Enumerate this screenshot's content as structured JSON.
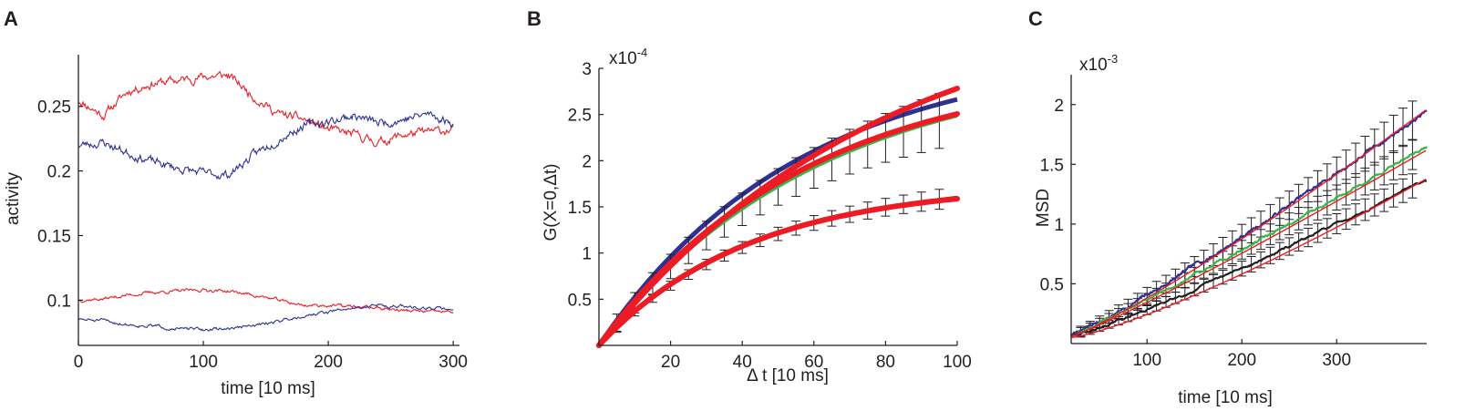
{
  "colors": {
    "red": "#ed1c24",
    "blue": "#2e3192",
    "green": "#39b54a",
    "black": "#231f20",
    "axis": "#231f20"
  },
  "chart_data": [
    {
      "panel": "A",
      "type": "line",
      "title": "",
      "xlabel": "time [10 ms]",
      "ylabel": "activity",
      "xlim": [
        0,
        305
      ],
      "ylim": [
        0.065,
        0.29
      ],
      "xticks": [
        0,
        100,
        200,
        300
      ],
      "xtick_labels": [
        "0",
        "100",
        "200",
        "300"
      ],
      "yticks": [
        0.1,
        0.15,
        0.2,
        0.25
      ],
      "ytick_labels": [
        "0.1",
        "0.15",
        "0.2",
        "0.25"
      ],
      "grid": false,
      "series": [
        {
          "name": "red upper",
          "color": "red",
          "noise": 0.0045,
          "seed": 11,
          "x": [
            0,
            20,
            40,
            60,
            80,
            100,
            120,
            140,
            160,
            180,
            200,
            220,
            240,
            260,
            280,
            300
          ],
          "y": [
            0.255,
            0.243,
            0.262,
            0.268,
            0.27,
            0.273,
            0.274,
            0.258,
            0.244,
            0.24,
            0.232,
            0.228,
            0.222,
            0.228,
            0.23,
            0.232
          ]
        },
        {
          "name": "blue upper",
          "color": "blue",
          "noise": 0.0045,
          "seed": 23,
          "x": [
            0,
            20,
            40,
            60,
            80,
            100,
            120,
            140,
            160,
            180,
            200,
            220,
            240,
            260,
            280,
            300
          ],
          "y": [
            0.22,
            0.222,
            0.214,
            0.207,
            0.202,
            0.198,
            0.197,
            0.212,
            0.225,
            0.235,
            0.238,
            0.243,
            0.237,
            0.24,
            0.244,
            0.237
          ]
        },
        {
          "name": "red lower",
          "color": "red",
          "noise": 0.0017,
          "seed": 37,
          "x": [
            0,
            20,
            40,
            60,
            80,
            100,
            120,
            140,
            160,
            180,
            200,
            220,
            240,
            260,
            280,
            300
          ],
          "y": [
            0.1,
            0.101,
            0.104,
            0.106,
            0.107,
            0.108,
            0.107,
            0.104,
            0.1,
            0.096,
            0.096,
            0.095,
            0.094,
            0.092,
            0.091,
            0.091
          ]
        },
        {
          "name": "blue lower",
          "color": "blue",
          "noise": 0.0017,
          "seed": 51,
          "x": [
            0,
            20,
            40,
            60,
            80,
            100,
            120,
            140,
            160,
            180,
            200,
            220,
            240,
            260,
            280,
            300
          ],
          "y": [
            0.085,
            0.084,
            0.081,
            0.08,
            0.078,
            0.077,
            0.078,
            0.08,
            0.084,
            0.088,
            0.091,
            0.094,
            0.096,
            0.095,
            0.094,
            0.093
          ]
        }
      ]
    },
    {
      "panel": "B",
      "type": "line",
      "title": "",
      "xlabel": "Δ t [10 ms]",
      "ylabel": "G(X=0,Δt)",
      "scale_base": "x10",
      "scale_exp": "-4",
      "xlim": [
        0,
        100
      ],
      "ylim": [
        0,
        3
      ],
      "xticks": [
        20,
        40,
        60,
        80,
        100
      ],
      "xtick_labels": [
        "20",
        "40",
        "60",
        "80",
        "100"
      ],
      "yticks": [
        0.5,
        1,
        1.5,
        2,
        2.5,
        3
      ],
      "ytick_labels": [
        "0.5",
        "1",
        "1.5",
        "2",
        "2.5",
        "3"
      ],
      "grid": false,
      "errorbar_x": [
        5,
        10,
        15,
        20,
        25,
        30,
        35,
        40,
        45,
        50,
        55,
        60,
        65,
        70,
        75,
        80,
        85,
        90,
        95
      ],
      "series": [
        {
          "name": "blue data",
          "color": "blue",
          "amplitude": 3.2,
          "tau": 56,
          "err": 0.05,
          "errorbars": false,
          "width": 5
        },
        {
          "name": "green data",
          "color": "green",
          "amplitude": 3.1,
          "tau": 62,
          "err": 0.22,
          "errorbars": true,
          "width": 3
        },
        {
          "name": "black data",
          "color": "black",
          "amplitude": 1.8,
          "tau": 45,
          "err": 0.08,
          "errorbars": true,
          "width": 3
        },
        {
          "name": "red fit 1",
          "color": "red",
          "amplitude": 3.9,
          "tau": 80,
          "errorbars": false,
          "width": 6
        },
        {
          "name": "red fit 2",
          "color": "red",
          "amplitude": 3.05,
          "tau": 58,
          "errorbars": false,
          "width": 6
        },
        {
          "name": "red fit 3",
          "color": "red",
          "amplitude": 1.75,
          "tau": 42,
          "errorbars": false,
          "width": 6
        }
      ]
    },
    {
      "panel": "C",
      "type": "line",
      "title": "",
      "xlabel": "time [10 ms]",
      "ylabel": "MSD",
      "scale_base": "x10",
      "scale_exp": "-3",
      "xlim": [
        20,
        395
      ],
      "ylim": [
        0,
        2.25
      ],
      "xticks": [
        100,
        200,
        300
      ],
      "xtick_labels": [
        "100",
        "200",
        "300"
      ],
      "yticks": [
        0.5,
        1,
        1.5,
        2
      ],
      "ytick_labels": [
        "0.5",
        "1",
        "1.5",
        "2"
      ],
      "grid": false,
      "errorbar_x": [
        30,
        40,
        50,
        60,
        70,
        80,
        90,
        100,
        110,
        120,
        130,
        140,
        150,
        160,
        170,
        180,
        190,
        200,
        210,
        220,
        230,
        240,
        250,
        260,
        270,
        280,
        290,
        300,
        310,
        320,
        330,
        340,
        350,
        360,
        370,
        380
      ],
      "series": [
        {
          "name": "blue MSD",
          "color": "blue",
          "noise": 0.035,
          "seed": 7,
          "err_scale": 0.13,
          "y_at_20": 0.07,
          "y_at_395": 1.95,
          "curve": 1.12
        },
        {
          "name": "green MSD",
          "color": "green",
          "noise": 0.025,
          "seed": 19,
          "err_scale": 0.1,
          "y_at_20": 0.07,
          "y_at_395": 1.65,
          "curve": 1.08
        },
        {
          "name": "black MSD",
          "color": "black",
          "noise": 0.02,
          "seed": 29,
          "err_scale": 0.08,
          "y_at_20": 0.06,
          "y_at_395": 1.38,
          "curve": 1.15
        }
      ],
      "fits": [
        {
          "name": "red fit 1",
          "color": "red",
          "y_at_20": 0.06,
          "y_at_395": 1.96,
          "curve": 1.15
        },
        {
          "name": "red fit 2",
          "color": "red",
          "y_at_20": 0.06,
          "y_at_395": 1.62,
          "curve": 1.1
        },
        {
          "name": "red fit 3",
          "color": "red",
          "y_at_20": 0.05,
          "y_at_395": 1.38,
          "curve": 1.25
        }
      ]
    }
  ]
}
